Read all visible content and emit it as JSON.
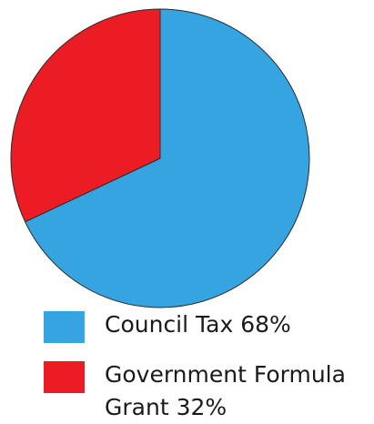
{
  "chart_data": {
    "type": "pie",
    "title": "",
    "slices": [
      {
        "label": "Council Tax",
        "value": 68,
        "color": "#36a4e0",
        "legend_text": "Council Tax 68%"
      },
      {
        "label": "Government Formula Grant",
        "value": 32,
        "color": "#ec1c24",
        "legend_text_line1": "Government Formula",
        "legend_text_line2": "Grant 32%"
      }
    ],
    "start_angle": "top",
    "direction": "clockwise",
    "legend_placement": "bottom"
  }
}
